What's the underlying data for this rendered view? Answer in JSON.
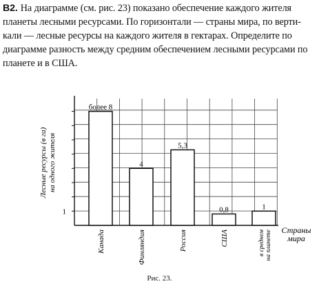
{
  "problem": {
    "number": "B2.",
    "lines": [
      "На диаграмме (см. рис. 23) показано обеспечение каждого жителя",
      "планеты лесными ресурсами. По горизонтали — страны мира, по верти-",
      "кали — лесные ресурсы на каждого жителя в гектарах. Определите по",
      "диаграмме разность между средним обеспечением лесными ресурсами по",
      "планете и в США."
    ]
  },
  "chart_data": {
    "type": "bar",
    "categories": [
      "Канада",
      "Финляндия",
      "Россия",
      "США",
      "в среднем на планете"
    ],
    "category_lines": [
      [
        "Канада"
      ],
      [
        "Финляндия"
      ],
      [
        "Россия"
      ],
      [
        "США"
      ],
      [
        "в среднем",
        "на планете"
      ]
    ],
    "values": [
      8,
      4,
      5.3,
      0.8,
      1
    ],
    "data_labels": [
      "более 8",
      "4",
      "5,3",
      "0,8",
      "1"
    ],
    "ylabel_lines": [
      "Лесные ресурсы (в га)",
      "на одного жителя"
    ],
    "xlabel_lines": [
      "Страны",
      "мира"
    ],
    "y_tick_label": "1",
    "ylim": [
      0,
      8.9
    ],
    "grid": true
  },
  "caption": "Рис. 23."
}
